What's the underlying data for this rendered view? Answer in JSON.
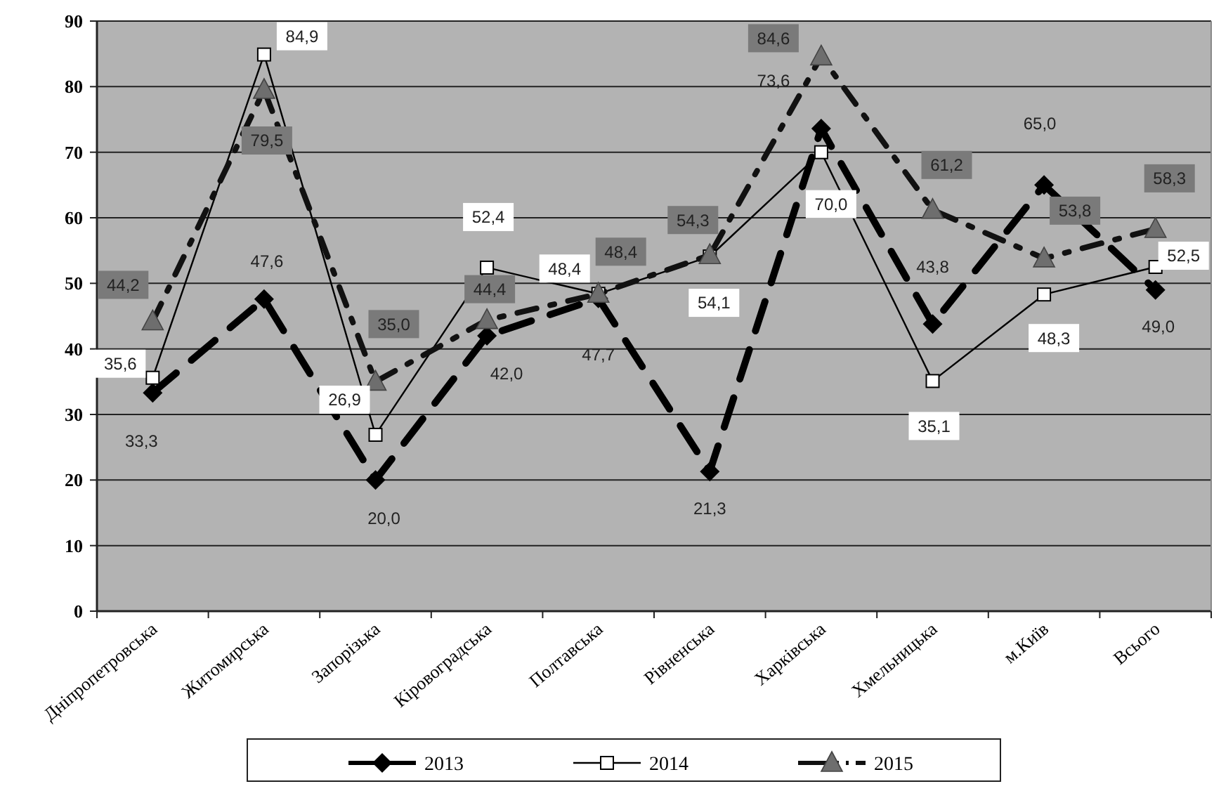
{
  "chart_data": {
    "type": "line",
    "categories": [
      "Дніпропетровська",
      "Житомирська",
      "Запорізька",
      "Кіровоградська",
      "Полтавська",
      "Рівненська",
      "Харківська",
      "Хмельницька",
      "м.Київ",
      "Всього"
    ],
    "series": [
      {
        "name": "2013",
        "color": "#000000",
        "marker": "diamond",
        "line_style": "dashed",
        "values": [
          33.3,
          47.6,
          20.0,
          42.0,
          47.7,
          21.3,
          73.6,
          43.8,
          65.0,
          49.0
        ],
        "value_labels": [
          "33,3",
          "47,6",
          "20,0",
          "42,0",
          "47,7",
          "21,3",
          "73,6",
          "43,8",
          "65,0",
          "49,0"
        ]
      },
      {
        "name": "2014",
        "color": "#000000",
        "marker": "square",
        "line_style": "solid",
        "values": [
          35.6,
          84.9,
          26.9,
          52.4,
          48.4,
          54.1,
          70.0,
          35.1,
          48.3,
          52.5
        ],
        "value_labels": [
          "35,6",
          "84,9",
          "26,9",
          "52,4",
          "48,4",
          "54,1",
          "70,0",
          "35,1",
          "48,3",
          "52,5"
        ]
      },
      {
        "name": "2015",
        "color": "#6e6e6e",
        "marker": "triangle",
        "line_style": "dotted",
        "values": [
          44.2,
          79.5,
          35.0,
          44.4,
          48.4,
          54.3,
          84.6,
          61.2,
          53.8,
          58.3
        ],
        "value_labels": [
          "44,2",
          "79,5",
          "35,0",
          "44,4",
          "48,4",
          "54,3",
          "84,6",
          "61,2",
          "53,8",
          "58,3"
        ]
      }
    ],
    "ylim": [
      0,
      90
    ],
    "yticks": [
      0,
      10,
      20,
      30,
      40,
      50,
      60,
      70,
      80,
      90
    ],
    "grid": "y",
    "legend": "bottom"
  }
}
